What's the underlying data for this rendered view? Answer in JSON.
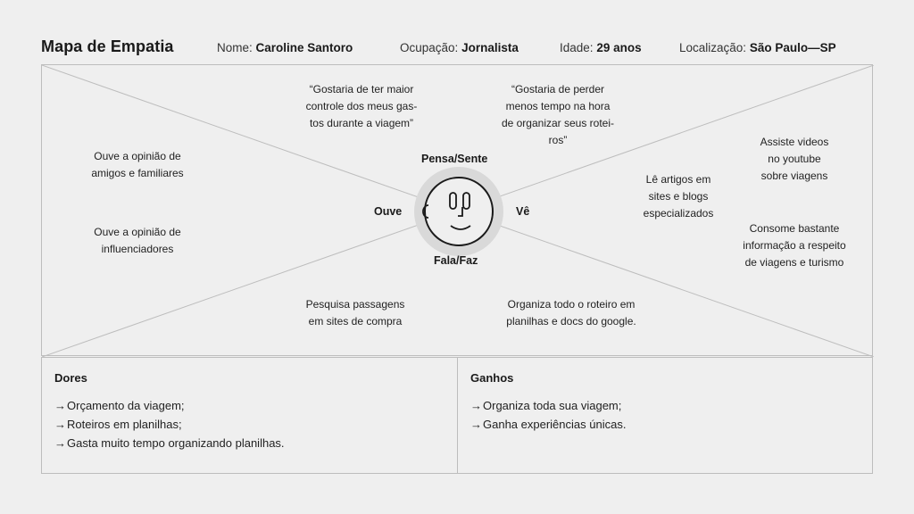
{
  "header": {
    "title": "Mapa de Empatia",
    "nome_label": "Nome:",
    "nome_value": "Caroline Santoro",
    "ocupacao_label": "Ocupação:",
    "ocupacao_value": "Jornalista",
    "idade_label": "Idade:",
    "idade_value": "29 anos",
    "localizacao_label": "Localização:",
    "localizacao_value": "São Paulo—SP"
  },
  "face": {
    "top": "Pensa/Sente",
    "left": "Ouve",
    "right": "Vê",
    "bottom": "Fala/Faz"
  },
  "pensa_sente": [
    "“Gostaria de ter maior\ncontrole dos meus gas-\ntos durante a viagem”",
    "“Gostaria de perder\nmenos tempo na hora\nde organizar seus rotei-\nros”"
  ],
  "ouve": [
    "Ouve a opinião de\namigos e familiares",
    "Ouve a opinião de\ninfluenciadores"
  ],
  "ve": [
    "Assiste videos\nno youtube\nsobre viagens",
    "Lê artigos em\nsites e blogs\nespecializados",
    "Consome bastante\ninformação a respeito\nde viagens e turismo"
  ],
  "fala_faz": [
    "Pesquisa passagens\nem sites de compra",
    "Organiza todo o roteiro em\nplanilhas e docs do google."
  ],
  "dores": {
    "title": "Dores",
    "arrow": "→",
    "items": [
      "Orçamento da viagem;",
      "Roteiros em planilhas;",
      "Gasta muito tempo organizando planilhas."
    ]
  },
  "ganhos": {
    "title": "Ganhos",
    "arrow": "→",
    "items": [
      "Organiza toda sua viagem;",
      "Ganha experiências únicas."
    ]
  }
}
